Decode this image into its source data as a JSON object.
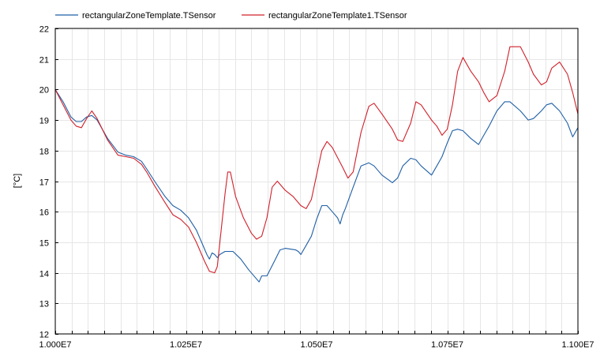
{
  "chart_data": {
    "type": "line",
    "title": "",
    "xlabel": "",
    "ylabel": "[°C]",
    "xlim": [
      10000000,
      11000000
    ],
    "ylim": [
      12,
      22
    ],
    "grid": true,
    "legend_position": "top",
    "x_ticks": [
      {
        "value": 10000000,
        "label": "1.000E7"
      },
      {
        "value": 10250000,
        "label": "1.025E7"
      },
      {
        "value": 10500000,
        "label": "1.050E7"
      },
      {
        "value": 10750000,
        "label": "1.075E7"
      },
      {
        "value": 11000000,
        "label": "1.100E7"
      }
    ],
    "y_ticks": [
      {
        "value": 12,
        "label": "12"
      },
      {
        "value": 13,
        "label": "13"
      },
      {
        "value": 14,
        "label": "14"
      },
      {
        "value": 15,
        "label": "15"
      },
      {
        "value": 16,
        "label": "16"
      },
      {
        "value": 17,
        "label": "17"
      },
      {
        "value": 18,
        "label": "18"
      },
      {
        "value": 19,
        "label": "19"
      },
      {
        "value": 20,
        "label": "20"
      },
      {
        "value": 21,
        "label": "21"
      },
      {
        "value": 22,
        "label": "22"
      }
    ],
    "series": [
      {
        "name": "rectangularZoneTemplate.TSensor",
        "color": "#1f5fa6",
        "x": [
          10000000,
          10015000,
          10030000,
          10040000,
          10050000,
          10060000,
          10070000,
          10080000,
          10090000,
          10100000,
          10120000,
          10135000,
          10150000,
          10165000,
          10175000,
          10190000,
          10210000,
          10225000,
          10240000,
          10255000,
          10270000,
          10280000,
          10290000,
          10295000,
          10300000,
          10305000,
          10310000,
          10315000,
          10325000,
          10335000,
          10340000,
          10355000,
          10370000,
          10385000,
          10390000,
          10395000,
          10405000,
          10420000,
          10430000,
          10440000,
          10460000,
          10465000,
          10470000,
          10480000,
          10490000,
          10500000,
          10510000,
          10520000,
          10530000,
          10540000,
          10545000,
          10550000,
          10555000,
          10570000,
          10585000,
          10600000,
          10610000,
          10625000,
          10645000,
          10655000,
          10665000,
          10680000,
          10690000,
          10700000,
          10720000,
          10730000,
          10740000,
          10750000,
          10760000,
          10770000,
          10780000,
          10795000,
          10810000,
          10820000,
          10830000,
          10845000,
          10860000,
          10870000,
          10890000,
          10905000,
          10915000,
          10930000,
          10940000,
          10950000,
          10965000,
          10980000,
          10990000,
          11000000
        ],
        "y": [
          20.0,
          19.6,
          19.1,
          18.95,
          18.95,
          19.1,
          19.15,
          19.0,
          18.7,
          18.4,
          17.95,
          17.85,
          17.8,
          17.65,
          17.4,
          17.0,
          16.5,
          16.2,
          16.05,
          15.8,
          15.4,
          15.0,
          14.6,
          14.45,
          14.65,
          14.6,
          14.5,
          14.6,
          14.7,
          14.7,
          14.7,
          14.45,
          14.1,
          13.8,
          13.7,
          13.9,
          13.9,
          14.4,
          14.75,
          14.8,
          14.75,
          14.7,
          14.6,
          14.9,
          15.2,
          15.75,
          16.2,
          16.2,
          16.0,
          15.8,
          15.6,
          15.9,
          16.1,
          16.8,
          17.5,
          17.6,
          17.5,
          17.2,
          16.95,
          17.1,
          17.5,
          17.75,
          17.7,
          17.5,
          17.2,
          17.5,
          17.8,
          18.25,
          18.65,
          18.7,
          18.65,
          18.4,
          18.2,
          18.5,
          18.8,
          19.3,
          19.6,
          19.6,
          19.3,
          19.0,
          19.05,
          19.3,
          19.5,
          19.55,
          19.3,
          18.9,
          18.45,
          18.75
        ]
      },
      {
        "name": "rectangularZoneTemplate1.TSensor",
        "color": "#d0202a",
        "x": [
          10000000,
          10015000,
          10030000,
          10040000,
          10050000,
          10060000,
          10070000,
          10080000,
          10090000,
          10100000,
          10120000,
          10135000,
          10150000,
          10165000,
          10175000,
          10190000,
          10210000,
          10225000,
          10240000,
          10255000,
          10270000,
          10285000,
          10295000,
          10305000,
          10310000,
          10315000,
          10325000,
          10330000,
          10335000,
          10345000,
          10360000,
          10375000,
          10385000,
          10395000,
          10405000,
          10415000,
          10425000,
          10440000,
          10455000,
          10470000,
          10480000,
          10490000,
          10500000,
          10510000,
          10520000,
          10530000,
          10550000,
          10560000,
          10570000,
          10585000,
          10600000,
          10610000,
          10625000,
          10645000,
          10655000,
          10665000,
          10680000,
          10690000,
          10700000,
          10720000,
          10730000,
          10740000,
          10750000,
          10760000,
          10770000,
          10780000,
          10795000,
          10810000,
          10820000,
          10830000,
          10845000,
          10860000,
          10870000,
          10890000,
          10905000,
          10915000,
          10930000,
          10940000,
          10950000,
          10965000,
          10980000,
          10990000,
          11000000
        ],
        "y": [
          20.0,
          19.5,
          19.0,
          18.8,
          18.75,
          19.05,
          19.3,
          19.05,
          18.7,
          18.35,
          17.85,
          17.8,
          17.75,
          17.55,
          17.3,
          16.85,
          16.3,
          15.9,
          15.75,
          15.5,
          15.0,
          14.4,
          14.05,
          14.0,
          14.2,
          15.0,
          16.6,
          17.3,
          17.3,
          16.5,
          15.8,
          15.3,
          15.1,
          15.2,
          15.8,
          16.8,
          17.0,
          16.7,
          16.5,
          16.2,
          16.1,
          16.4,
          17.2,
          18.0,
          18.3,
          18.1,
          17.45,
          17.1,
          17.3,
          18.6,
          19.45,
          19.55,
          19.2,
          18.7,
          18.35,
          18.3,
          18.9,
          19.6,
          19.5,
          19.0,
          18.8,
          18.5,
          18.7,
          19.5,
          20.6,
          21.05,
          20.6,
          20.25,
          19.9,
          19.6,
          19.8,
          20.6,
          21.4,
          21.4,
          20.9,
          20.5,
          20.15,
          20.25,
          20.7,
          20.9,
          20.5,
          19.9,
          19.2
        ]
      }
    ]
  }
}
